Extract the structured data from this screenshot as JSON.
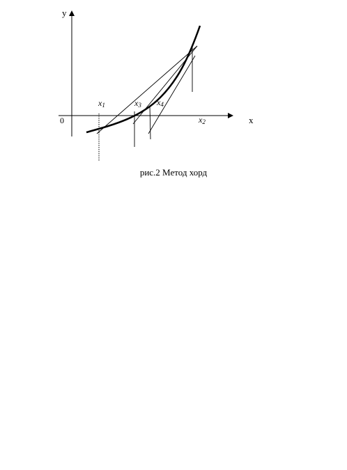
{
  "labels": {
    "y_axis": "y",
    "x_axis": "x",
    "origin": "0",
    "x1": {
      "base": "x",
      "sub": "1"
    },
    "x2": {
      "base": "x",
      "sub": "2"
    },
    "x3": {
      "base": "x",
      "sub": "3"
    },
    "x4": {
      "base": "x",
      "sub": "4"
    }
  },
  "caption": "рис.2 Метод хорд",
  "colors": {
    "ink": "#000000",
    "background": "#ffffff"
  }
}
